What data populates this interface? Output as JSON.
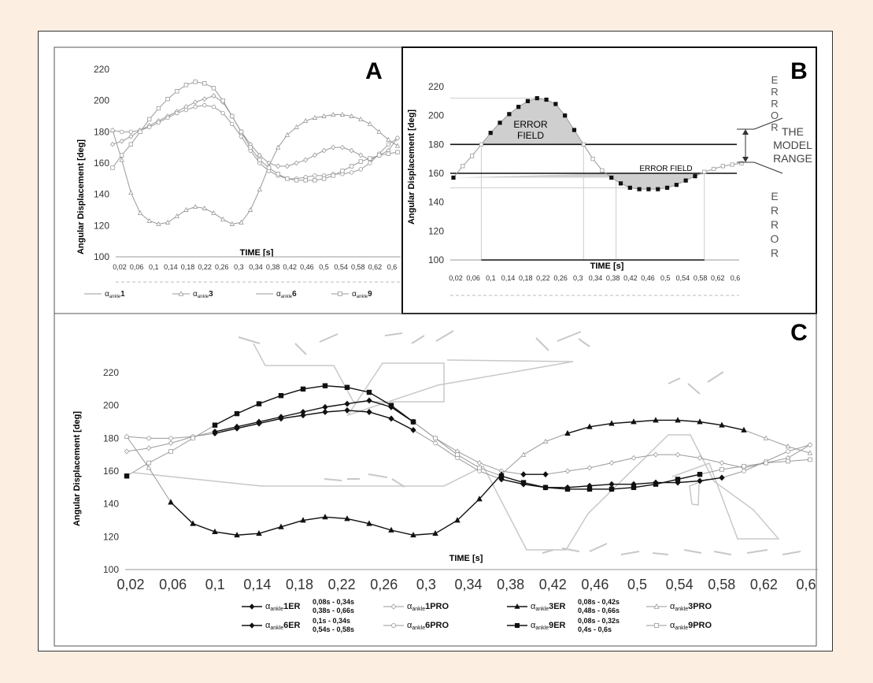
{
  "colors": {
    "page_bg": "#fdeee2",
    "panel_bg": "#ffffff",
    "grey_series": "#9a9a9a",
    "dark_series": "#111111",
    "error_fill": "#cfcfcf",
    "deco": "#c8c8c8"
  },
  "panels": {
    "A": {
      "letter": "A"
    },
    "B": {
      "letter": "B",
      "error_field_top_line1": "ERROR",
      "error_field_top_line2": "FIELD",
      "error_field_bottom": "ERROR FIELD",
      "error_vertical_letters": [
        "E",
        "R",
        "R",
        "O",
        "R"
      ],
      "model_range_lines": [
        "THE",
        "MODEL",
        "RANGE"
      ]
    },
    "C": {
      "letter": "C"
    }
  },
  "legend_A": [
    {
      "label": "α",
      "sub": "ankle",
      "num": "1",
      "marker": "none"
    },
    {
      "label": "α",
      "sub": "ankle",
      "num": "3",
      "marker": "triangle"
    },
    {
      "label": "α",
      "sub": "ankle",
      "num": "6",
      "marker": "none"
    },
    {
      "label": "α",
      "sub": "ankle",
      "num": "9",
      "marker": "square"
    }
  ],
  "legend_C": [
    {
      "label": "α",
      "sub": "ankle",
      "name": "1ER",
      "marker": "diamond",
      "dark": true,
      "ranges": [
        "0,08s - 0,34s",
        "0,38s - 0,66s"
      ]
    },
    {
      "label": "α",
      "sub": "ankle",
      "name": "1PRO",
      "marker": "diamond",
      "dark": false,
      "ranges": []
    },
    {
      "label": "α",
      "sub": "ankle",
      "name": "3ER",
      "marker": "triangle",
      "dark": true,
      "ranges": [
        "0,08s - 0,42s",
        "0,48s - 0,66s"
      ]
    },
    {
      "label": "α",
      "sub": "ankle",
      "name": "3PRO",
      "marker": "triangle",
      "dark": false,
      "ranges": []
    },
    {
      "label": "α",
      "sub": "ankle",
      "name": "6ER",
      "marker": "diamond",
      "dark": true,
      "ranges": [
        "0,1s - 0,34s",
        "0,54s - 0,58s"
      ]
    },
    {
      "label": "α",
      "sub": "ankle",
      "name": "6PRO",
      "marker": "circle",
      "dark": false,
      "ranges": []
    },
    {
      "label": "α",
      "sub": "ankle",
      "name": "9ER",
      "marker": "square",
      "dark": true,
      "ranges": [
        "0,08s - 0,32s",
        "0,4s - 0,6s"
      ]
    },
    {
      "label": "α",
      "sub": "ankle",
      "name": "9PRO",
      "marker": "square",
      "dark": false,
      "ranges": []
    }
  ],
  "chart_data": [
    {
      "id": "A",
      "type": "line",
      "xlabel": "TIME [s]",
      "ylabel": "Angular Displacement [deg]",
      "ylim": [
        100,
        220
      ],
      "yticks": [
        100,
        120,
        140,
        160,
        180,
        200,
        220
      ],
      "xticks": [
        "0,02",
        "0,06",
        "0,1",
        "0,14",
        "0,18",
        "0,22",
        "0,26",
        "0,3",
        "0,34",
        "0,38",
        "0,42",
        "0,46",
        "0,5",
        "0,54",
        "0,58",
        "0,62",
        "0,6"
      ],
      "grid": false,
      "legend": "bottom",
      "x": [
        0.02,
        0.04,
        0.06,
        0.08,
        0.1,
        0.12,
        0.14,
        0.16,
        0.18,
        0.2,
        0.22,
        0.24,
        0.26,
        0.28,
        0.3,
        0.32,
        0.34,
        0.36,
        0.38,
        0.4,
        0.42,
        0.44,
        0.46,
        0.48,
        0.5,
        0.52,
        0.54,
        0.56,
        0.58,
        0.6,
        0.62,
        0.64
      ],
      "series": [
        {
          "name": "α ankle1",
          "marker": "diamond",
          "values": [
            172,
            174,
            177,
            181,
            184,
            187,
            190,
            193,
            196,
            199,
            201,
            203,
            199,
            190,
            180,
            172,
            165,
            160,
            158,
            158,
            160,
            162,
            165,
            168,
            170,
            170,
            168,
            165,
            162,
            165,
            168,
            176
          ]
        },
        {
          "name": "α ankle3",
          "marker": "triangle",
          "values": [
            181,
            162,
            141,
            128,
            123,
            121,
            122,
            126,
            130,
            132,
            131,
            128,
            124,
            121,
            122,
            130,
            143,
            158,
            170,
            178,
            183,
            187,
            189,
            190,
            191,
            191,
            190,
            188,
            185,
            180,
            175,
            171
          ]
        },
        {
          "name": "α ankle6",
          "marker": "circle",
          "values": [
            181,
            180,
            180,
            181,
            183,
            186,
            189,
            192,
            194,
            196,
            197,
            196,
            192,
            185,
            177,
            168,
            160,
            155,
            152,
            150,
            150,
            151,
            152,
            152,
            153,
            153,
            154,
            156,
            160,
            166,
            172,
            176
          ]
        },
        {
          "name": "α ankle9",
          "marker": "square",
          "values": [
            157,
            165,
            172,
            180,
            188,
            195,
            201,
            206,
            210,
            212,
            211,
            208,
            200,
            190,
            180,
            170,
            162,
            157,
            153,
            150,
            149,
            149,
            149,
            150,
            152,
            155,
            158,
            161,
            163,
            165,
            166,
            167
          ]
        }
      ]
    },
    {
      "id": "B",
      "type": "line",
      "xlabel": "TIME [s]",
      "ylabel": "Angular Displacement [deg]",
      "ylim": [
        100,
        220
      ],
      "yticks": [
        100,
        120,
        140,
        160,
        180,
        200,
        220
      ],
      "xticks": [
        "0,02",
        "0,06",
        "0,1",
        "0,14",
        "0,18",
        "0,22",
        "0,26",
        "0,3",
        "0,34",
        "0,38",
        "0,42",
        "0,46",
        "0,5",
        "0,54",
        "0,58",
        "0,62",
        "0,6"
      ],
      "model_range": [
        160,
        180
      ],
      "grid": false,
      "x": [
        0.02,
        0.04,
        0.06,
        0.08,
        0.1,
        0.12,
        0.14,
        0.16,
        0.18,
        0.2,
        0.22,
        0.24,
        0.26,
        0.28,
        0.3,
        0.32,
        0.34,
        0.36,
        0.38,
        0.4,
        0.42,
        0.44,
        0.46,
        0.48,
        0.5,
        0.52,
        0.54,
        0.56,
        0.58,
        0.6,
        0.62,
        0.64
      ],
      "series": [
        {
          "name": "α ankle9",
          "values": [
            157,
            165,
            172,
            180,
            188,
            195,
            201,
            206,
            210,
            212,
            211,
            208,
            200,
            190,
            180,
            170,
            162,
            157,
            153,
            150,
            149,
            149,
            149,
            150,
            152,
            155,
            158,
            161,
            163,
            165,
            166,
            167
          ]
        }
      ]
    },
    {
      "id": "C",
      "type": "line",
      "xlabel": "TIME [s]",
      "ylabel": "Angular Displacement [deg]",
      "ylim": [
        100,
        220
      ],
      "yticks": [
        100,
        120,
        140,
        160,
        180,
        200,
        220
      ],
      "xticks": [
        "0,02",
        "0,06",
        "0,1",
        "0,14",
        "0,18",
        "0,22",
        "0,26",
        "0,3",
        "0,34",
        "0,38",
        "0,42",
        "0,46",
        "0,5",
        "0,54",
        "0,58",
        "0,62",
        "0,6"
      ],
      "grid": false,
      "legend": "bottom",
      "x": [
        0.02,
        0.04,
        0.06,
        0.08,
        0.1,
        0.12,
        0.14,
        0.16,
        0.18,
        0.2,
        0.22,
        0.24,
        0.26,
        0.28,
        0.3,
        0.32,
        0.34,
        0.36,
        0.38,
        0.4,
        0.42,
        0.44,
        0.46,
        0.48,
        0.5,
        0.52,
        0.54,
        0.56,
        0.58,
        0.6,
        0.62,
        0.64
      ],
      "series": [
        {
          "name": "α ankle1PRO",
          "values": [
            172,
            174,
            177,
            181,
            184,
            187,
            190,
            193,
            196,
            199,
            201,
            203,
            199,
            190,
            180,
            172,
            165,
            160,
            158,
            158,
            160,
            162,
            165,
            168,
            170,
            170,
            168,
            165,
            162,
            165,
            168,
            176
          ]
        },
        {
          "name": "α ankle3PRO",
          "values": [
            181,
            162,
            141,
            128,
            123,
            121,
            122,
            126,
            130,
            132,
            131,
            128,
            124,
            121,
            122,
            130,
            143,
            158,
            170,
            178,
            183,
            187,
            189,
            190,
            191,
            191,
            190,
            188,
            185,
            180,
            175,
            171
          ]
        },
        {
          "name": "α ankle6PRO",
          "values": [
            181,
            180,
            180,
            181,
            183,
            186,
            189,
            192,
            194,
            196,
            197,
            196,
            192,
            185,
            177,
            168,
            160,
            155,
            152,
            150,
            150,
            151,
            152,
            152,
            153,
            153,
            154,
            156,
            160,
            166,
            172,
            176
          ]
        },
        {
          "name": "α ankle9PRO",
          "values": [
            157,
            165,
            172,
            180,
            188,
            195,
            201,
            206,
            210,
            212,
            211,
            208,
            200,
            190,
            180,
            170,
            162,
            157,
            153,
            150,
            149,
            149,
            149,
            150,
            152,
            155,
            158,
            161,
            163,
            165,
            166,
            167
          ]
        }
      ]
    }
  ]
}
